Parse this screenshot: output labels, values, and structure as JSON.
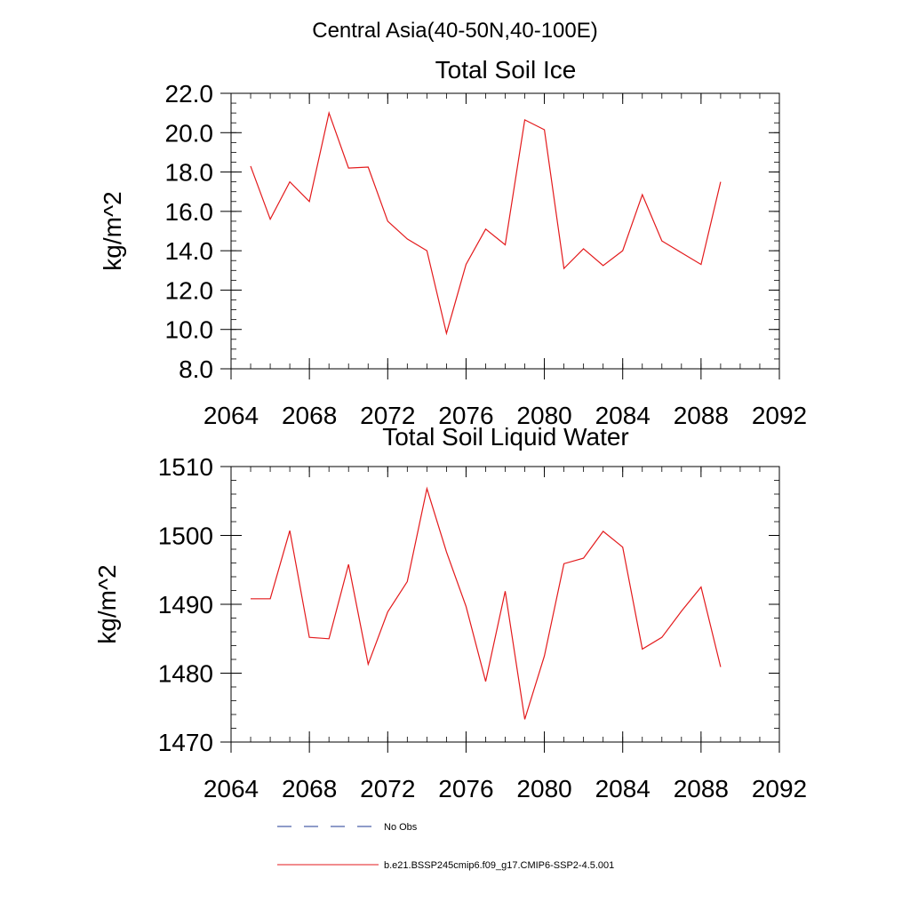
{
  "figure": {
    "title": "Central Asia(40-50N,40-100E)"
  },
  "colors": {
    "model_line": "#e31a1c",
    "obs_line": "#1f3a93",
    "axis": "#000000"
  },
  "chart_data": [
    {
      "type": "line",
      "title": "Total Soil Ice",
      "xlabel": "",
      "ylabel": "kg/m^2",
      "xlim": [
        2064,
        2092
      ],
      "ylim": [
        8,
        22
      ],
      "x_ticks": [
        2064,
        2068,
        2072,
        2076,
        2080,
        2084,
        2088,
        2092
      ],
      "y_ticks": [
        "8.0",
        "10.0",
        "12.0",
        "14.0",
        "16.0",
        "18.0",
        "20.0",
        "22.0"
      ],
      "y_minor_step": 0.5,
      "x_minor_step": 1,
      "grid": false,
      "x": [
        2065,
        2066,
        2067,
        2068,
        2069,
        2070,
        2071,
        2072,
        2073,
        2074,
        2075,
        2076,
        2077,
        2078,
        2079,
        2080,
        2081,
        2082,
        2083,
        2084,
        2085,
        2086,
        2087,
        2088,
        2089
      ],
      "series": [
        {
          "values": [
            18.3,
            15.6,
            17.5,
            16.5,
            21.0,
            18.2,
            18.25,
            15.5,
            14.6,
            14.0,
            9.8,
            13.3,
            15.1,
            14.3,
            20.65,
            20.15,
            13.1,
            14.1,
            13.25,
            14.0,
            16.85,
            14.5,
            13.9,
            13.3,
            17.5
          ]
        }
      ]
    },
    {
      "type": "line",
      "title": "Total Soil Liquid Water",
      "xlabel": "",
      "ylabel": "kg/m^2",
      "xlim": [
        2064,
        2092
      ],
      "ylim": [
        1470,
        1510
      ],
      "x_ticks": [
        2064,
        2068,
        2072,
        2076,
        2080,
        2084,
        2088,
        2092
      ],
      "y_ticks": [
        "1470",
        "1480",
        "1490",
        "1500",
        "1510"
      ],
      "y_minor_step": 2,
      "x_minor_step": 1,
      "grid": false,
      "x": [
        2065,
        2066,
        2067,
        2068,
        2069,
        2070,
        2071,
        2072,
        2073,
        2074,
        2075,
        2076,
        2077,
        2078,
        2079,
        2080,
        2081,
        2082,
        2083,
        2084,
        2085,
        2086,
        2087,
        2088,
        2089
      ],
      "series": [
        {
          "values": [
            1490.8,
            1490.8,
            1500.7,
            1485.2,
            1485.0,
            1495.8,
            1481.3,
            1488.9,
            1493.3,
            1506.8,
            1497.6,
            1489.7,
            1478.8,
            1491.9,
            1473.3,
            1482.5,
            1495.9,
            1496.7,
            1500.6,
            1498.3,
            1483.5,
            1485.2,
            1489.0,
            1492.5,
            1480.9
          ]
        }
      ]
    }
  ],
  "legend": {
    "placement": "bottom",
    "entries": [
      {
        "label": "No Obs",
        "style": "dashed",
        "color": "#1f3a93"
      },
      {
        "label": "b.e21.BSSP245cmip6.f09_g17.CMIP6-SSP2-4.5.001",
        "style": "solid",
        "color": "#e31a1c"
      }
    ]
  }
}
